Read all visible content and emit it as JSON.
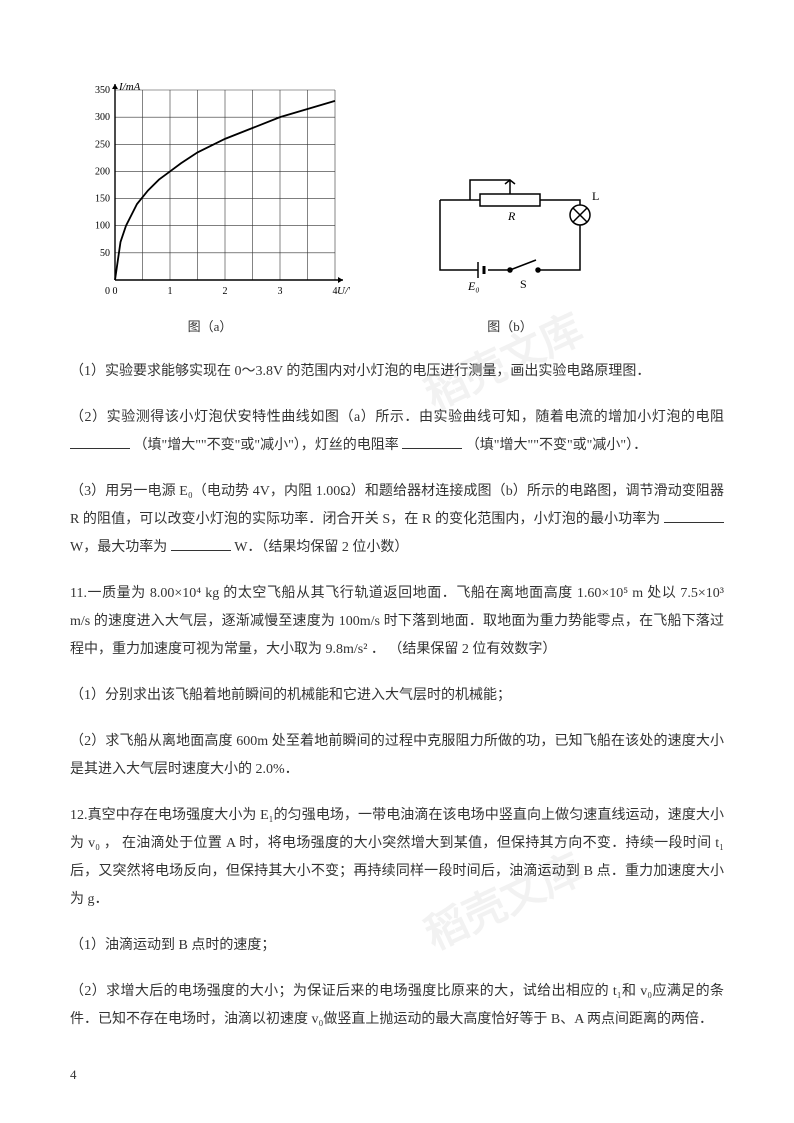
{
  "figures": {
    "a": {
      "caption": "图（a）",
      "chart": {
        "type": "line",
        "xlabel": "U/V",
        "ylabel": "I/mA",
        "xlim": [
          0,
          4
        ],
        "ylim": [
          0,
          350
        ],
        "xticks": [
          0,
          1,
          2,
          3,
          4
        ],
        "yticks": [
          0,
          50,
          100,
          150,
          200,
          250,
          300,
          350
        ],
        "xtick_step": 0.5,
        "ytick_step": 50,
        "grid_color": "#333333",
        "background_color": "#ffffff",
        "line_color": "#000000",
        "line_width": 1.8,
        "axis_color": "#000000",
        "label_fontsize": 11,
        "tick_fontsize": 10,
        "points": [
          [
            0,
            0
          ],
          [
            0.1,
            70
          ],
          [
            0.2,
            100
          ],
          [
            0.4,
            140
          ],
          [
            0.6,
            165
          ],
          [
            0.8,
            185
          ],
          [
            1.0,
            200
          ],
          [
            1.2,
            215
          ],
          [
            1.5,
            235
          ],
          [
            2.0,
            260
          ],
          [
            2.5,
            280
          ],
          [
            3.0,
            300
          ],
          [
            3.5,
            315
          ],
          [
            4.0,
            330
          ]
        ]
      }
    },
    "b": {
      "caption": "图（b）",
      "circuit": {
        "line_color": "#000000",
        "line_width": 1.5,
        "labels": {
          "R": "R",
          "S": "S",
          "E0": "E₀",
          "L": "L"
        },
        "background_color": "#ffffff"
      }
    }
  },
  "q1": {
    "text": "（1）实验要求能够实现在 0～3.8V 的范围内对小灯泡的电压进行测量，画出实验电路原理图．"
  },
  "q2": {
    "prefix": "（2）实验测得该小灯泡伏安特性曲线如图（a）所示．由实验曲线可知，随着电流的增加小灯泡的电阻",
    "hint1": "（填\"增大\"\"不变\"或\"减小\"），灯丝的电阻率",
    "hint2": "（填\"增大\"\"不变\"或\"减小\"）．"
  },
  "q3": {
    "prefix": "（3）用另一电源 E₀（电动势 4V，内阻 1.00Ω）和题给器材连接成图（b）所示的电路图，调节滑动变阻器 R 的阻值，可以改变小灯泡的实际功率．闭合开关 S，在 R 的变化范围内，小灯泡的最小功率为",
    "mid": "W，最大功率为",
    "suffix": "W．（结果均保留 2 位小数）"
  },
  "q11": {
    "intro": "11.一质量为 8.00×10⁴ kg 的太空飞船从其飞行轨道返回地面．飞船在离地面高度 1.60×10⁵ m 处以 7.5×10³ m/s 的速度进入大气层，逐渐减慢至速度为 100m/s 时下落到地面．取地面为重力势能零点，在飞船下落过程中，重力加速度可视为常量，大小取为 9.8m/s² ． （结果保留 2 位有效数字）",
    "p1": "（1）分别求出该飞船着地前瞬间的机械能和它进入大气层时的机械能；",
    "p2": "（2）求飞船从离地面高度 600m 处至着地前瞬间的过程中克服阻力所做的功，已知飞船在该处的速度大小是其进入大气层时速度大小的 2.0%．"
  },
  "q12": {
    "intro": "12.真空中存在电场强度大小为 E₁的匀强电场，一带电油滴在该电场中竖直向上做匀速直线运动，速度大小为 v₀ ， 在油滴处于位置 A 时，将电场强度的大小突然增大到某值，但保持其方向不变．持续一段时间 t₁后，又突然将电场反向，但保持其大小不变；再持续同样一段时间后，油滴运动到 B 点．重力加速度大小为 g．",
    "p1": "（1）油滴运动到 B 点时的速度；",
    "p2": "（2）求增大后的电场强度的大小；为保证后来的电场强度比原来的大，试给出相应的 t₁和 v₀应满足的条件．已知不存在电场时，油滴以初速度 v₀做竖直上抛运动的最大高度恰好等于 B、A 两点间距离的两倍．"
  },
  "page_number": "4",
  "watermark_text": "稻壳文库"
}
